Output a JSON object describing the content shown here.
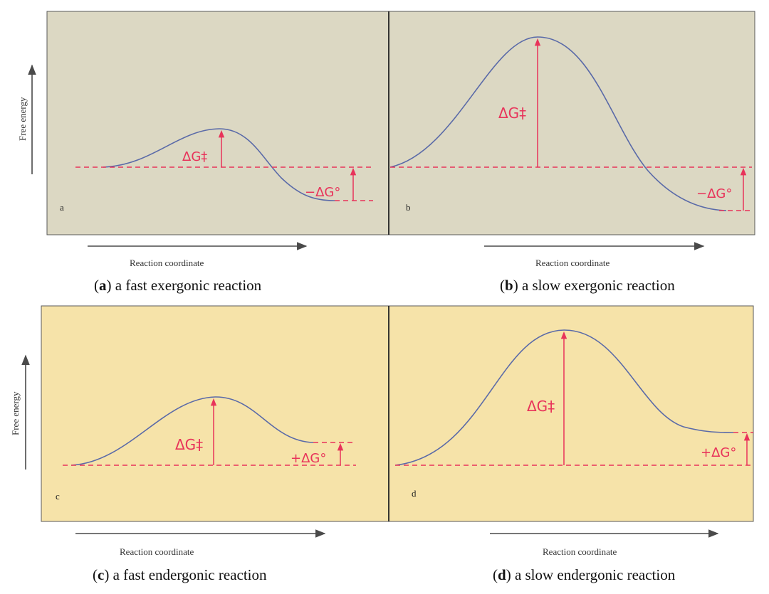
{
  "colors": {
    "panel_top_bg": "#dcd8c3",
    "panel_bottom_bg": "#f6e3a9",
    "curve": "#5a6aa8",
    "accent": "#e8335a"
  },
  "y_axis_label": "Free energy",
  "x_axis_label": "Reaction coordinate",
  "panels": [
    {
      "letter": "a",
      "dg_barrier": "ΔG‡",
      "dg_standard": "−ΔG°",
      "caption_letter": "a",
      "caption_text": " a fast exergonic reaction"
    },
    {
      "letter": "b",
      "dg_barrier": "ΔG‡",
      "dg_standard": "−ΔG°",
      "caption_letter": "b",
      "caption_text": " a slow exergonic reaction"
    },
    {
      "letter": "c",
      "dg_barrier": "ΔG‡",
      "dg_standard": "+ΔG°",
      "caption_letter": "c",
      "caption_text": " a fast endergonic reaction"
    },
    {
      "letter": "d",
      "dg_barrier": "ΔG‡",
      "dg_standard": "+ΔG°",
      "caption_letter": "d",
      "caption_text": " a slow endergonic reaction"
    }
  ]
}
